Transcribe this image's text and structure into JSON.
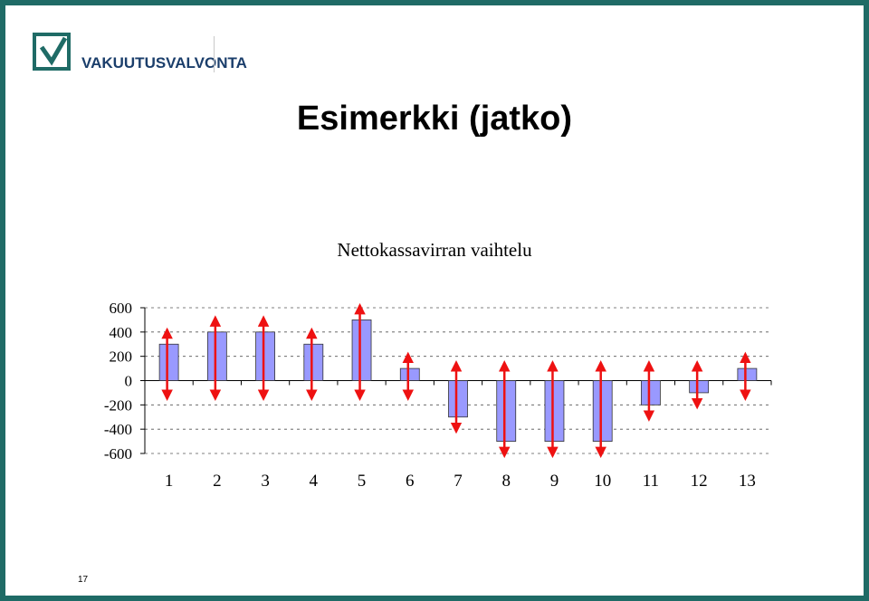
{
  "brand": {
    "name": "VAKUUTUSVALVONTA",
    "frame_color": "#1f6b66",
    "logo_color": "#1f6b66",
    "logo_icon": "checkmark-box-icon"
  },
  "slide": {
    "title": "Esimerkki (jatko)",
    "page_number": "17"
  },
  "chart_data": {
    "type": "bar",
    "title": "Nettokassavirran vaihtelu",
    "xlabel": "",
    "ylabel": "",
    "categories": [
      "1",
      "2",
      "3",
      "4",
      "5",
      "6",
      "7",
      "8",
      "9",
      "10",
      "11",
      "12",
      "13"
    ],
    "values": [
      300,
      400,
      400,
      300,
      500,
      100,
      -300,
      -500,
      -500,
      -500,
      -200,
      -100,
      100
    ],
    "ylim": [
      -600,
      600
    ],
    "yticks": [
      600,
      400,
      200,
      0,
      -200,
      -400,
      -600
    ],
    "grid": true,
    "legend": "none",
    "bar_color": "#9999ff",
    "arrow_color": "#ee1111",
    "annotations": "double-headed arrows on each bar"
  }
}
